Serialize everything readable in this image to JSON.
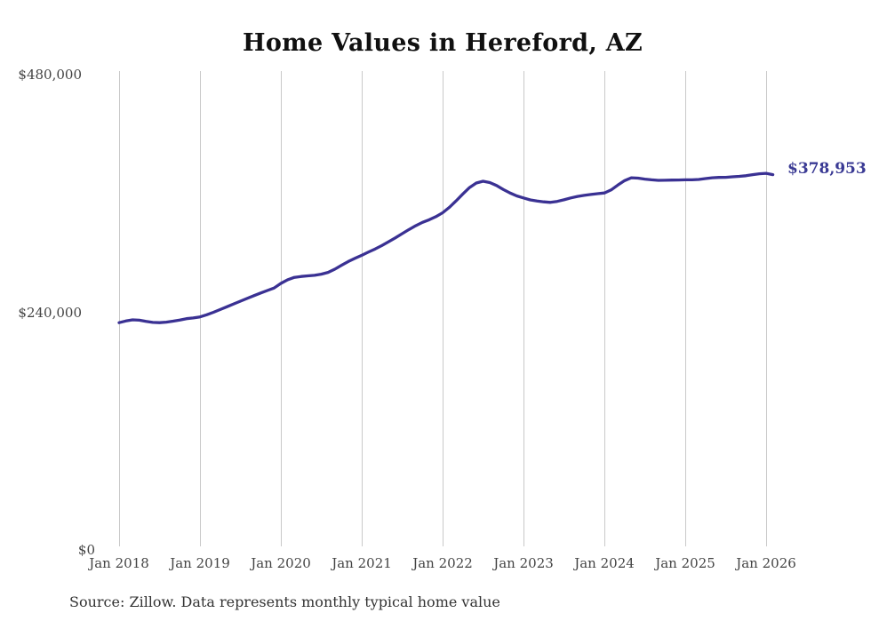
{
  "title": "Home Values in Hereford, AZ",
  "source_note": "Source: Zillow. Data represents monthly typical home value",
  "colors": {
    "line": "#3a3193",
    "end_label_text": "#3a3a94",
    "gridline": "#c9c9c9",
    "axis_text": "#444444",
    "title_text": "#101010",
    "source_text": "#333333",
    "background": "#ffffff"
  },
  "chart_data": {
    "type": "line",
    "title": "Home Values in Hereford, AZ",
    "series_name": "Typical home value",
    "x_unit": "month",
    "x_start": "2018-01",
    "x_end": "2026-02",
    "x_tick_labels": [
      "Jan 2018",
      "Jan 2019",
      "Jan 2020",
      "Jan 2021",
      "Jan 2022",
      "Jan 2023",
      "Jan 2024",
      "Jan 2025",
      "Jan 2026"
    ],
    "y_ticks": [
      {
        "label": "$480,000",
        "value": 480000
      },
      {
        "label": "$240,000",
        "value": 240000
      },
      {
        "label": "$0",
        "value": 0
      }
    ],
    "ylim": [
      0,
      480000
    ],
    "grid": "vertical-only",
    "legend": "none",
    "final_value": 378953,
    "final_value_label": "$378,953",
    "months": [
      "2018-01",
      "2018-02",
      "2018-03",
      "2018-04",
      "2018-05",
      "2018-06",
      "2018-07",
      "2018-08",
      "2018-09",
      "2018-10",
      "2018-11",
      "2018-12",
      "2019-01",
      "2019-02",
      "2019-03",
      "2019-04",
      "2019-05",
      "2019-06",
      "2019-07",
      "2019-08",
      "2019-09",
      "2019-10",
      "2019-11",
      "2019-12",
      "2020-01",
      "2020-02",
      "2020-03",
      "2020-04",
      "2020-05",
      "2020-06",
      "2020-07",
      "2020-08",
      "2020-09",
      "2020-10",
      "2020-11",
      "2020-12",
      "2021-01",
      "2021-02",
      "2021-03",
      "2021-04",
      "2021-05",
      "2021-06",
      "2021-07",
      "2021-08",
      "2021-09",
      "2021-10",
      "2021-11",
      "2021-12",
      "2022-01",
      "2022-02",
      "2022-03",
      "2022-04",
      "2022-05",
      "2022-06",
      "2022-07",
      "2022-08",
      "2022-09",
      "2022-10",
      "2022-11",
      "2022-12",
      "2023-01",
      "2023-02",
      "2023-03",
      "2023-04",
      "2023-05",
      "2023-06",
      "2023-07",
      "2023-08",
      "2023-09",
      "2023-10",
      "2023-11",
      "2023-12",
      "2024-01",
      "2024-02",
      "2024-03",
      "2024-04",
      "2024-05",
      "2024-06",
      "2024-07",
      "2024-08",
      "2024-09",
      "2024-10",
      "2024-11",
      "2024-12",
      "2025-01",
      "2025-02",
      "2025-03",
      "2025-04",
      "2025-05",
      "2025-06",
      "2025-07",
      "2025-08",
      "2025-09",
      "2025-10",
      "2025-11",
      "2025-12",
      "2026-01",
      "2026-02"
    ],
    "values": [
      229500,
      231200,
      232400,
      232000,
      230800,
      229800,
      229500,
      230000,
      231000,
      232200,
      233500,
      234300,
      235300,
      237500,
      240000,
      242800,
      245600,
      248400,
      251200,
      254000,
      256800,
      259500,
      262000,
      264500,
      269200,
      272800,
      275300,
      276200,
      276800,
      277300,
      278500,
      280300,
      283500,
      287500,
      291200,
      294500,
      297500,
      300800,
      304000,
      307500,
      311200,
      315200,
      319400,
      323500,
      327400,
      330800,
      333400,
      336500,
      340500,
      346000,
      352500,
      359500,
      366000,
      370500,
      372300,
      371000,
      368000,
      364000,
      360500,
      357500,
      355500,
      353500,
      352400,
      351500,
      351000,
      352000,
      353600,
      355500,
      357000,
      358100,
      359000,
      359800,
      360500,
      363500,
      368500,
      373000,
      375800,
      375500,
      374500,
      373800,
      373200,
      373300,
      373500,
      373600,
      373800,
      373800,
      374100,
      375000,
      375800,
      376200,
      376300,
      376800,
      377300,
      377900,
      379000,
      379900,
      380300,
      378953
    ]
  }
}
